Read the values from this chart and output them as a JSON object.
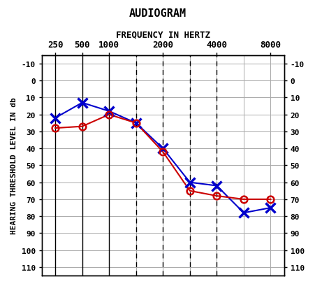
{
  "title": "AUDIOGRAM",
  "subtitle": "FREQUENCY IN HERTZ",
  "blue_x_data": [
    1,
    2,
    3,
    4,
    5,
    6,
    7,
    8,
    9
  ],
  "blue_y_data": [
    22,
    13,
    18,
    25,
    40,
    60,
    62,
    78,
    75
  ],
  "red_x_data": [
    1,
    2,
    3,
    4,
    5,
    6,
    7,
    8,
    9
  ],
  "red_y_data": [
    28,
    27,
    20,
    25,
    42,
    65,
    68,
    70,
    70
  ],
  "blue_color": "#0000cc",
  "red_color": "#cc0000",
  "xtick_positions": [
    1,
    2,
    3,
    5,
    7,
    9
  ],
  "xtick_labels": [
    "250",
    "500",
    "1000",
    "2000",
    "4000",
    "8000"
  ],
  "all_x_positions": [
    1,
    2,
    3,
    4,
    5,
    6,
    7,
    8,
    9
  ],
  "solid_vlines": [
    1,
    2,
    3
  ],
  "dashed_vlines": [
    4,
    5,
    6,
    7
  ],
  "ytick_vals": [
    -10,
    0,
    10,
    20,
    30,
    40,
    50,
    60,
    70,
    80,
    90,
    100,
    110
  ],
  "ymin": -15,
  "ymax": 115,
  "ylabel": "HEARING THRESHOLD LEVEL IN db",
  "grid_color": "#aaaaaa",
  "bg_color": "#ffffff",
  "fig_bg_color": "#ffffff"
}
